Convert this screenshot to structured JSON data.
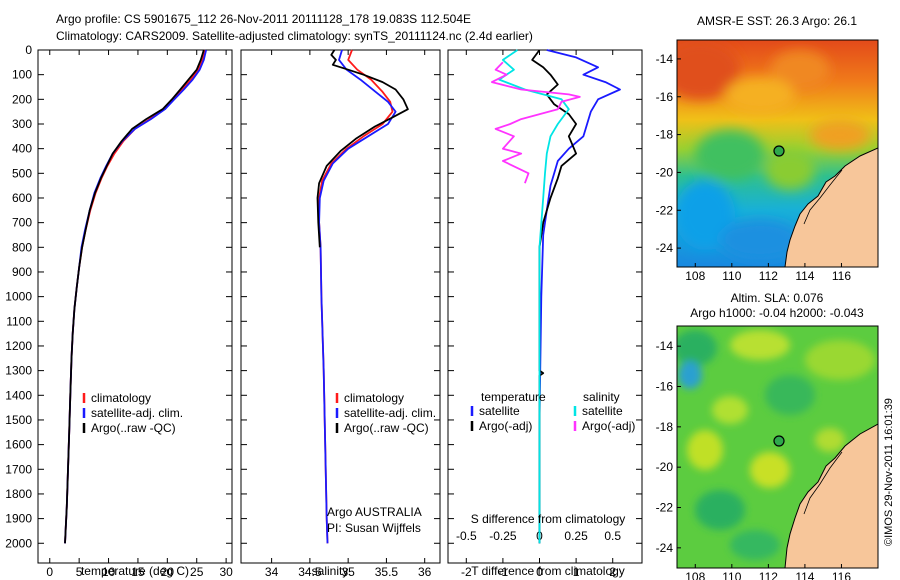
{
  "header": {
    "line1": "Argo profile: CS 5901675_112 26-Nov-2011 20111128_178 19.083S 112.504E",
    "line2": "Climatology: CARS2009. Satellite-adjusted climatology: synTS_20111124.nc (2.4d earlier)"
  },
  "colors": {
    "climatology": "#ff1a1a",
    "satellite": "#1a1aff",
    "argo": "#000000",
    "sal_satellite": "#00e5e5",
    "sal_argo": "#ff33ff"
  },
  "chart_data": [
    {
      "type": "line",
      "name": "temperature-profile",
      "xlabel": "temperature (deg C)",
      "ylabel": "depth",
      "xlim": [
        -2,
        31
      ],
      "ylim": [
        2080,
        0
      ],
      "xticks": [
        "0",
        "5",
        "10",
        "15",
        "20",
        "25",
        "30"
      ],
      "yticks": [
        "0",
        "100",
        "200",
        "300",
        "400",
        "500",
        "600",
        "700",
        "800",
        "900",
        "1000",
        "1100",
        "1200",
        "1300",
        "1400",
        "1500",
        "1600",
        "1700",
        "1800",
        "1900",
        "2000"
      ],
      "legend": [
        "climatology",
        "satellite-adj. clim.",
        "Argo(..raw -QC)"
      ],
      "series": [
        {
          "name": "climatology",
          "points": [
            [
              26.4,
              0
            ],
            [
              26,
              40
            ],
            [
              25.2,
              80
            ],
            [
              24,
              120
            ],
            [
              22.5,
              160
            ],
            [
              21,
              200
            ],
            [
              19.5,
              240
            ],
            [
              17,
              280
            ],
            [
              14.5,
              320
            ],
            [
              12.5,
              370
            ],
            [
              11,
              420
            ],
            [
              9.8,
              470
            ],
            [
              8.8,
              520
            ],
            [
              7.8,
              580
            ],
            [
              6.9,
              650
            ],
            [
              6.1,
              730
            ],
            [
              5.5,
              800
            ],
            [
              5,
              880
            ],
            [
              4.6,
              960
            ],
            [
              4.2,
              1050
            ],
            [
              3.9,
              1150
            ],
            [
              3.7,
              1250
            ],
            [
              3.5,
              1400
            ],
            [
              3.3,
              1550
            ],
            [
              3.1,
              1700
            ],
            [
              2.9,
              1850
            ],
            [
              2.7,
              1950
            ],
            [
              2.6,
              2000
            ]
          ]
        },
        {
          "name": "satellite-adj. clim.",
          "points": [
            [
              26.6,
              0
            ],
            [
              26.2,
              40
            ],
            [
              25.5,
              80
            ],
            [
              24.3,
              120
            ],
            [
              22.8,
              160
            ],
            [
              21.2,
              200
            ],
            [
              19.6,
              240
            ],
            [
              17.2,
              280
            ],
            [
              14.5,
              320
            ],
            [
              12.3,
              370
            ],
            [
              10.7,
              420
            ],
            [
              9.6,
              470
            ],
            [
              8.6,
              520
            ],
            [
              7.6,
              580
            ],
            [
              6.8,
              650
            ],
            [
              6,
              730
            ],
            [
              5.4,
              800
            ],
            [
              5,
              880
            ],
            [
              4.6,
              960
            ],
            [
              4.2,
              1050
            ],
            [
              3.9,
              1150
            ],
            [
              3.7,
              1250
            ],
            [
              3.5,
              1400
            ],
            [
              3.3,
              1550
            ],
            [
              3.1,
              1700
            ],
            [
              2.9,
              1850
            ],
            [
              2.7,
              1950
            ],
            [
              2.6,
              2000
            ]
          ]
        },
        {
          "name": "Argo(..raw -QC)",
          "points": [
            [
              26.2,
              0
            ],
            [
              25.7,
              40
            ],
            [
              25,
              80
            ],
            [
              23.6,
              120
            ],
            [
              22.2,
              160
            ],
            [
              20.8,
              200
            ],
            [
              19.2,
              240
            ],
            [
              16.4,
              280
            ],
            [
              14,
              320
            ],
            [
              12.2,
              370
            ],
            [
              10.7,
              420
            ],
            [
              9.7,
              470
            ],
            [
              8.7,
              520
            ],
            [
              7.7,
              580
            ],
            [
              6.8,
              650
            ],
            [
              6.1,
              730
            ],
            [
              5.5,
              800
            ],
            [
              5,
              880
            ],
            [
              4.6,
              960
            ],
            [
              4.2,
              1050
            ],
            [
              3.9,
              1150
            ],
            [
              3.7,
              1250
            ],
            [
              3.5,
              1400
            ],
            [
              3.3,
              1550
            ],
            [
              3.1,
              1700
            ],
            [
              2.9,
              1850
            ],
            [
              2.7,
              1950
            ],
            [
              2.6,
              2000
            ]
          ]
        }
      ]
    },
    {
      "type": "line",
      "name": "salinity-profile",
      "xlabel": "salinity",
      "xlim": [
        33.6,
        36.2
      ],
      "ylim": [
        2080,
        0
      ],
      "xticks": [
        "34",
        "34.5",
        "35",
        "35.5",
        "36"
      ],
      "legend": [
        "climatology",
        "satellite-adj. clim.",
        "Argo(..raw -QC)"
      ],
      "annotation": [
        "Argo AUSTRALIA",
        "PI: Susan Wijffels"
      ],
      "series": [
        {
          "name": "climatology",
          "points": [
            [
              35.05,
              0
            ],
            [
              35.0,
              40
            ],
            [
              35.12,
              80
            ],
            [
              35.3,
              120
            ],
            [
              35.45,
              170
            ],
            [
              35.55,
              210
            ],
            [
              35.58,
              250
            ],
            [
              35.45,
              300
            ],
            [
              35.2,
              350
            ],
            [
              34.98,
              400
            ],
            [
              34.78,
              460
            ],
            [
              34.66,
              530
            ],
            [
              34.62,
              600
            ],
            [
              34.62,
              700
            ],
            [
              34.64,
              800
            ],
            [
              34.65,
              1000
            ],
            [
              34.68,
              1300
            ],
            [
              34.7,
              1600
            ],
            [
              34.72,
              1900
            ],
            [
              34.73,
              2000
            ]
          ]
        },
        {
          "name": "satellite-adj. clim.",
          "points": [
            [
              34.92,
              0
            ],
            [
              34.88,
              40
            ],
            [
              34.98,
              80
            ],
            [
              35.16,
              120
            ],
            [
              35.36,
              170
            ],
            [
              35.52,
              210
            ],
            [
              35.62,
              250
            ],
            [
              35.52,
              300
            ],
            [
              35.26,
              350
            ],
            [
              35.0,
              400
            ],
            [
              34.8,
              460
            ],
            [
              34.68,
              530
            ],
            [
              34.63,
              600
            ],
            [
              34.62,
              700
            ],
            [
              34.64,
              800
            ],
            [
              34.65,
              1000
            ],
            [
              34.68,
              1300
            ],
            [
              34.7,
              1600
            ],
            [
              34.72,
              1900
            ],
            [
              34.73,
              2000
            ]
          ]
        },
        {
          "name": "Argo(..raw -QC)",
          "points": [
            [
              34.82,
              0
            ],
            [
              34.78,
              20
            ],
            [
              34.84,
              40
            ],
            [
              34.8,
              60
            ],
            [
              35.0,
              80
            ],
            [
              35.2,
              100
            ],
            [
              35.45,
              130
            ],
            [
              35.62,
              160
            ],
            [
              35.72,
              200
            ],
            [
              35.78,
              240
            ],
            [
              35.6,
              270
            ],
            [
              35.35,
              310
            ],
            [
              35.1,
              360
            ],
            [
              34.9,
              410
            ],
            [
              34.72,
              470
            ],
            [
              34.62,
              540
            ],
            [
              34.6,
              600
            ],
            [
              34.61,
              700
            ],
            [
              34.63,
              800
            ]
          ]
        }
      ]
    },
    {
      "type": "line",
      "name": "difference-profile",
      "xlabel": "T difference from climatology",
      "xlabel_top": "S difference from climatology",
      "xlim": [
        -2.5,
        2.8
      ],
      "ylim": [
        2080,
        0
      ],
      "xticks": [
        "-2",
        "-1",
        "0",
        "1",
        "2"
      ],
      "xticks_top": [
        "-0.5",
        "-0.25",
        "0",
        "0.25",
        "0.5"
      ],
      "legend_left_title": "temperature",
      "legend_left": [
        "satellite",
        "Argo(-adj)"
      ],
      "legend_right_title": "salinity",
      "legend_right": [
        "satellite",
        "Argo(-adj)"
      ],
      "series": [
        {
          "name": "temperature satellite",
          "points": [
            [
              0.2,
              0
            ],
            [
              1.0,
              30
            ],
            [
              1.6,
              70
            ],
            [
              1.2,
              100
            ],
            [
              1.8,
              130
            ],
            [
              2.2,
              160
            ],
            [
              1.6,
              200
            ],
            [
              1.4,
              250
            ],
            [
              1.3,
              300
            ],
            [
              1.2,
              350
            ],
            [
              0.8,
              400
            ],
            [
              0.5,
              450
            ],
            [
              0.4,
              500
            ],
            [
              0.3,
              550
            ],
            [
              0.2,
              650
            ],
            [
              0.1,
              750
            ],
            [
              0.05,
              1000
            ],
            [
              0,
              1500
            ],
            [
              0,
              2000
            ]
          ]
        },
        {
          "name": "temperature Argo(-adj)",
          "points": [
            [
              0,
              0
            ],
            [
              -0.2,
              40
            ],
            [
              0.1,
              70
            ],
            [
              0.3,
              100
            ],
            [
              0.5,
              140
            ],
            [
              0.2,
              180
            ],
            [
              0.4,
              220
            ],
            [
              0.8,
              260
            ],
            [
              1.0,
              300
            ],
            [
              0.8,
              350
            ],
            [
              1.0,
              420
            ],
            [
              0.6,
              470
            ],
            [
              0.5,
              520
            ],
            [
              0.3,
              600
            ],
            [
              0.1,
              700
            ],
            [
              0,
              800
            ],
            [
              0,
              1300
            ],
            [
              0.1,
              1310
            ],
            [
              0,
              1320
            ],
            [
              0,
              2000
            ]
          ]
        },
        {
          "name": "salinity satellite",
          "points": [
            [
              -0.6,
              0
            ],
            [
              -1.0,
              40
            ],
            [
              -0.7,
              80
            ],
            [
              -1.1,
              120
            ],
            [
              -0.4,
              160
            ],
            [
              0.6,
              200
            ],
            [
              0.8,
              240
            ],
            [
              0.5,
              300
            ],
            [
              0.3,
              350
            ],
            [
              0.2,
              420
            ],
            [
              0.15,
              500
            ],
            [
              0.1,
              600
            ],
            [
              0,
              800
            ],
            [
              0,
              2000
            ]
          ]
        },
        {
          "name": "salinity Argo(-adj)",
          "points": [
            [
              -1.0,
              50
            ],
            [
              -1.2,
              80
            ],
            [
              -0.9,
              100
            ],
            [
              -1.3,
              130
            ],
            [
              -0.5,
              160
            ],
            [
              0.8,
              180
            ],
            [
              1.1,
              190
            ],
            [
              0.6,
              210
            ],
            [
              0.5,
              240
            ],
            [
              -0.5,
              280
            ],
            [
              -0.8,
              300
            ],
            [
              -1.2,
              320
            ],
            [
              -0.7,
              350
            ],
            [
              -1.0,
              400
            ],
            [
              -0.5,
              420
            ],
            [
              -1.0,
              450
            ],
            [
              -0.3,
              500
            ],
            [
              -0.4,
              540
            ]
          ]
        }
      ]
    },
    {
      "type": "heatmap",
      "name": "sst-map",
      "title": "AMSR-E SST: 26.3 Argo: 26.1",
      "xticks": [
        "108",
        "110",
        "112",
        "114",
        "116"
      ],
      "yticks": [
        "-14",
        "-16",
        "-18",
        "-20",
        "-22",
        "-24"
      ],
      "argo_position": {
        "lon": 112.504,
        "lat": -19.083
      }
    },
    {
      "type": "heatmap",
      "name": "sla-map",
      "title_line1": "Altim. SLA: 0.076",
      "title_line2": "Argo h1000: -0.04 h2000: -0.043",
      "xticks": [
        "108",
        "110",
        "112",
        "114",
        "116"
      ],
      "yticks": [
        "-14",
        "-16",
        "-18",
        "-20",
        "-22",
        "-24"
      ],
      "argo_position": {
        "lon": 112.504,
        "lat": -19.083
      }
    }
  ],
  "watermark": "©IMOS 29-Nov-2011 16:01:39"
}
